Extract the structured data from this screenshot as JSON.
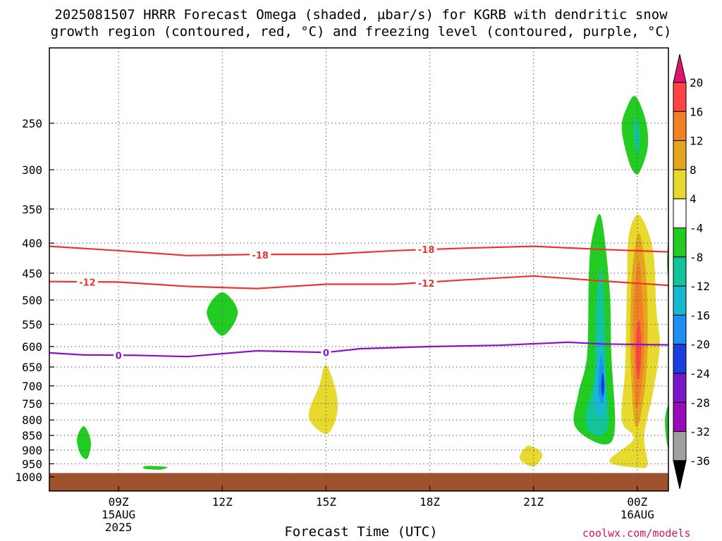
{
  "title_line1": "2025081507 HRRR Forecast Omega (shaded, µbar/s) for KGRB with dendritic snow",
  "title_line2": "growth region (contoured, red, °C) and freezing level (contoured, purple, °C)",
  "credit": "coolwx.com/models",
  "chart_data": {
    "type": "time-height contour",
    "xlabel": "Forecast Time (UTC)",
    "ylabel": "",
    "x_range_hours": [
      7,
      24.9
    ],
    "y_range_mb": [
      200,
      1050
    ],
    "y_scale": "log-pressure",
    "grid": "dotted",
    "x_ticks": [
      {
        "hour": 9,
        "lines": [
          "09Z",
          "15AUG",
          "2025"
        ]
      },
      {
        "hour": 12,
        "lines": [
          "12Z"
        ]
      },
      {
        "hour": 15,
        "lines": [
          "15Z"
        ]
      },
      {
        "hour": 18,
        "lines": [
          "18Z"
        ]
      },
      {
        "hour": 21,
        "lines": [
          "21Z"
        ]
      },
      {
        "hour": 24,
        "lines": [
          "00Z",
          "16AUG"
        ]
      }
    ],
    "y_ticks": [
      250,
      300,
      350,
      400,
      450,
      500,
      550,
      600,
      650,
      700,
      750,
      800,
      850,
      900,
      950,
      1000
    ],
    "surface_band_mb": [
      985,
      1050
    ],
    "colorbar": {
      "labels": [
        "20",
        "16",
        "12",
        "8",
        "4",
        "-4",
        "-8",
        "-12",
        "-16",
        "-20",
        "-24",
        "-28",
        "-32",
        "-36"
      ],
      "colors": [
        "#ff4444",
        "#f28126",
        "#e5a51e",
        "#e8d92e",
        "#ffffff",
        "#22cc22",
        "#11c49a",
        "#18b8d0",
        "#1d8ff0",
        "#1a3fe0",
        "#7a18c8",
        "#9a0ab8",
        "#a0a0a0"
      ],
      "top_color": "#e0146e",
      "bottom_color": "#000000"
    },
    "contours": [
      {
        "label": "-18",
        "color": "#ee3333",
        "points": [
          [
            7,
            405
          ],
          [
            9,
            412
          ],
          [
            11,
            420
          ],
          [
            13,
            418
          ],
          [
            15,
            418
          ],
          [
            17,
            412
          ],
          [
            19,
            408
          ],
          [
            21,
            405
          ],
          [
            23,
            410
          ],
          [
            24.9,
            414
          ]
        ]
      },
      {
        "label": "-12",
        "color": "#ee3333",
        "points": [
          [
            7,
            465
          ],
          [
            9,
            466
          ],
          [
            11,
            474
          ],
          [
            13,
            478
          ],
          [
            15,
            470
          ],
          [
            17,
            470
          ],
          [
            19,
            462
          ],
          [
            21,
            455
          ],
          [
            23,
            464
          ],
          [
            24.9,
            472
          ]
        ]
      },
      {
        "label": "0",
        "color": "#8e0fc8",
        "points": [
          [
            7,
            615
          ],
          [
            8,
            620
          ],
          [
            9.5,
            621
          ],
          [
            11,
            624
          ],
          [
            13,
            610
          ],
          [
            15,
            614
          ],
          [
            16,
            605
          ],
          [
            18,
            600
          ],
          [
            20,
            597
          ],
          [
            22,
            590
          ],
          [
            23,
            594
          ],
          [
            24.9,
            596
          ]
        ]
      }
    ],
    "contour_labels": [
      {
        "text": "-18",
        "hour": 13.1,
        "mb": 419
      },
      {
        "text": "-18",
        "hour": 17.9,
        "mb": 410
      },
      {
        "text": "-12",
        "hour": 8.1,
        "mb": 466
      },
      {
        "text": "-12",
        "hour": 17.9,
        "mb": 468
      },
      {
        "text": "0",
        "hour": 9.0,
        "mb": 621
      },
      {
        "text": "0",
        "hour": 15.0,
        "mb": 614
      }
    ],
    "omega_regions": [
      {
        "level": -4,
        "color": "#22cc22",
        "points": [
          [
            23.95,
            225
          ],
          [
            24.25,
            248
          ],
          [
            24.3,
            275
          ],
          [
            24.1,
            300
          ],
          [
            23.95,
            305
          ],
          [
            23.75,
            290
          ],
          [
            23.55,
            255
          ],
          [
            23.7,
            235
          ]
        ]
      },
      {
        "level": -8,
        "color": "#11c49a",
        "points": [
          [
            23.97,
            245
          ],
          [
            24.08,
            262
          ],
          [
            24.0,
            282
          ],
          [
            23.9,
            265
          ],
          [
            23.9,
            252
          ]
        ]
      },
      {
        "level": 4,
        "color": "#e8d92e",
        "points": [
          [
            24.05,
            358
          ],
          [
            24.45,
            410
          ],
          [
            24.55,
            520
          ],
          [
            24.65,
            600
          ],
          [
            24.45,
            720
          ],
          [
            24.2,
            850
          ],
          [
            24.3,
            950
          ],
          [
            24.05,
            965
          ],
          [
            23.2,
            940
          ],
          [
            23.9,
            860
          ],
          [
            23.55,
            800
          ],
          [
            23.65,
            650
          ],
          [
            23.7,
            480
          ],
          [
            23.75,
            390
          ]
        ]
      },
      {
        "level": 8,
        "color": "#e5a51e",
        "points": [
          [
            24.05,
            385
          ],
          [
            24.25,
            450
          ],
          [
            24.3,
            560
          ],
          [
            24.25,
            680
          ],
          [
            24.05,
            810
          ],
          [
            23.9,
            790
          ],
          [
            23.8,
            600
          ],
          [
            23.85,
            450
          ]
        ]
      },
      {
        "level": 12,
        "color": "#f28126",
        "points": [
          [
            24.05,
            430
          ],
          [
            24.15,
            500
          ],
          [
            24.2,
            600
          ],
          [
            24.1,
            720
          ],
          [
            23.95,
            760
          ],
          [
            23.9,
            640
          ],
          [
            23.9,
            500
          ]
        ]
      },
      {
        "level": 16,
        "color": "#ff4444",
        "points": [
          [
            24.05,
            540
          ],
          [
            24.12,
            600
          ],
          [
            24.05,
            680
          ],
          [
            23.97,
            650
          ],
          [
            23.97,
            580
          ]
        ]
      },
      {
        "level": -4,
        "color": "#22cc22",
        "points": [
          [
            22.95,
            360
          ],
          [
            23.2,
            480
          ],
          [
            23.25,
            620
          ],
          [
            23.35,
            830
          ],
          [
            23.0,
            880
          ],
          [
            22.2,
            820
          ],
          [
            22.3,
            720
          ],
          [
            22.55,
            620
          ],
          [
            22.6,
            450
          ],
          [
            22.7,
            390
          ]
        ]
      },
      {
        "level": -8,
        "color": "#11c49a",
        "points": [
          [
            22.95,
            440
          ],
          [
            23.05,
            520
          ],
          [
            23.1,
            680
          ],
          [
            23.15,
            820
          ],
          [
            22.8,
            850
          ],
          [
            22.5,
            800
          ],
          [
            22.75,
            680
          ],
          [
            22.8,
            520
          ]
        ]
      },
      {
        "level": -12,
        "color": "#18b8d0",
        "points": [
          [
            22.95,
            570
          ],
          [
            23.05,
            670
          ],
          [
            23.08,
            760
          ],
          [
            22.85,
            790
          ],
          [
            22.75,
            740
          ],
          [
            22.85,
            640
          ]
        ]
      },
      {
        "level": -16,
        "color": "#1d8ff0",
        "points": [
          [
            22.97,
            620
          ],
          [
            23.05,
            690
          ],
          [
            23.0,
            750
          ],
          [
            22.88,
            720
          ],
          [
            22.9,
            660
          ]
        ]
      },
      {
        "level": -20,
        "color": "#1a3fe0",
        "points": [
          [
            23.0,
            665
          ],
          [
            23.05,
            700
          ],
          [
            23.0,
            730
          ],
          [
            22.95,
            700
          ]
        ]
      },
      {
        "level": -4,
        "color": "#22cc22",
        "points": [
          [
            12.0,
            485
          ],
          [
            12.45,
            525
          ],
          [
            12.0,
            575
          ],
          [
            11.55,
            525
          ]
        ]
      },
      {
        "level": 4,
        "color": "#e8d92e",
        "points": [
          [
            15.0,
            645
          ],
          [
            15.3,
            720
          ],
          [
            15.3,
            790
          ],
          [
            15.0,
            845
          ],
          [
            14.5,
            790
          ],
          [
            14.8,
            700
          ]
        ]
      },
      {
        "level": 4,
        "color": "#e8d92e",
        "points": [
          [
            20.85,
            885
          ],
          [
            21.25,
            915
          ],
          [
            21.0,
            960
          ],
          [
            20.6,
            930
          ]
        ]
      },
      {
        "level": -4,
        "color": "#22cc22",
        "points": [
          [
            8.0,
            820
          ],
          [
            8.2,
            870
          ],
          [
            8.1,
            930
          ],
          [
            7.9,
            915
          ],
          [
            7.8,
            860
          ]
        ]
      },
      {
        "level": -4,
        "color": "#22cc22",
        "points": [
          [
            9.8,
            958
          ],
          [
            10.4,
            962
          ],
          [
            10.2,
            972
          ],
          [
            9.75,
            968
          ]
        ]
      },
      {
        "level": -4,
        "color": "#22cc22",
        "points": [
          [
            24.9,
            760
          ],
          [
            24.8,
            800
          ],
          [
            24.85,
            870
          ],
          [
            24.9,
            880
          ]
        ]
      },
      {
        "level": -4,
        "color": "#22cc22",
        "points": [
          [
            24.9,
            395
          ],
          [
            24.86,
            430
          ],
          [
            24.9,
            460
          ]
        ]
      }
    ]
  }
}
